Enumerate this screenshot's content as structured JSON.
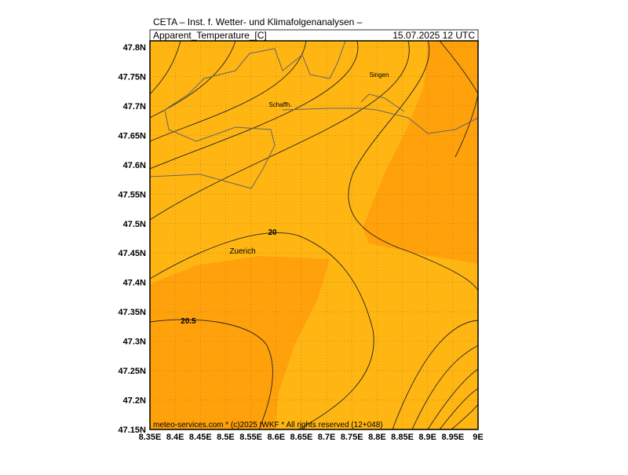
{
  "header": {
    "title": "CETA – Inst. f. Wetter- und Klimafolgenanalysen –",
    "variable": "Apparent_Temperature_[C]",
    "valid_time": "15.07.2025 12 UTC"
  },
  "axes": {
    "x_ticks": [
      "8.35E",
      "8.4E",
      "8.45E",
      "8.5E",
      "8.55E",
      "8.6E",
      "8.65E",
      "8.7E",
      "8.75E",
      "8.8E",
      "8.85E",
      "8.9E",
      "8.95E",
      "9E"
    ],
    "y_ticks": [
      "47.15N",
      "47.2N",
      "47.25N",
      "47.3N",
      "47.35N",
      "47.4N",
      "47.45N",
      "47.5N",
      "47.55N",
      "47.6N",
      "47.65N",
      "47.7N",
      "47.75N",
      "47.8N"
    ]
  },
  "places": [
    "Singen",
    "Schaffh.",
    "Zuerich"
  ],
  "contour_labels": [
    "20",
    "20.5"
  ],
  "footer": "meteo-services.com * (c)2025 IWKF * All rights reserved (12+048)"
}
